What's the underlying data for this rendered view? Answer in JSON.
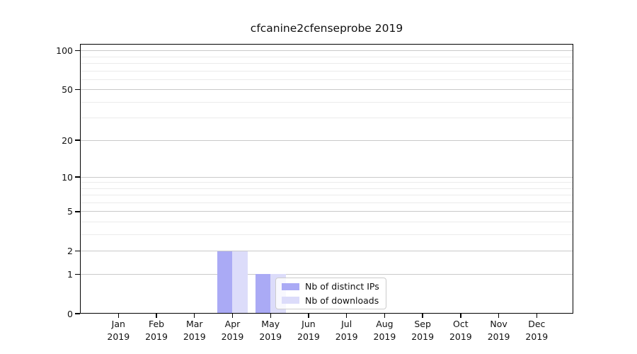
{
  "chart_data": {
    "type": "bar",
    "title": "cfcanine2cfenseprobe 2019",
    "categories": [
      "Jan",
      "Feb",
      "Mar",
      "Apr",
      "May",
      "Jun",
      "Jul",
      "Aug",
      "Sep",
      "Oct",
      "Nov",
      "Dec"
    ],
    "x_year": "2019",
    "series": [
      {
        "name": "Nb of distinct IPs",
        "color": "#aaaaf5",
        "values": [
          0,
          0,
          0,
          2,
          1,
          0,
          0,
          0,
          0,
          0,
          0,
          0
        ]
      },
      {
        "name": "Nb of downloads",
        "color": "#dcdcfa",
        "values": [
          0,
          0,
          0,
          2,
          1,
          0,
          0,
          0,
          0,
          0,
          0,
          0
        ]
      }
    ],
    "yscale": "symlog-log1p",
    "ylim": [
      0,
      113
    ],
    "y_ticks": [
      0,
      1,
      2,
      5,
      10,
      20,
      50,
      100
    ],
    "y_minor_ticks": [
      3,
      4,
      6,
      7,
      8,
      9,
      30,
      40,
      60,
      70,
      80,
      90
    ],
    "xlabel": "",
    "ylabel": "",
    "grid": "horizontal",
    "legend_position": "inside-bottom-center-right"
  },
  "colors": {
    "grid_major": "#c9c9c9",
    "grid_minor": "#ebebeb",
    "axis": "#000000",
    "background": "#ffffff"
  }
}
